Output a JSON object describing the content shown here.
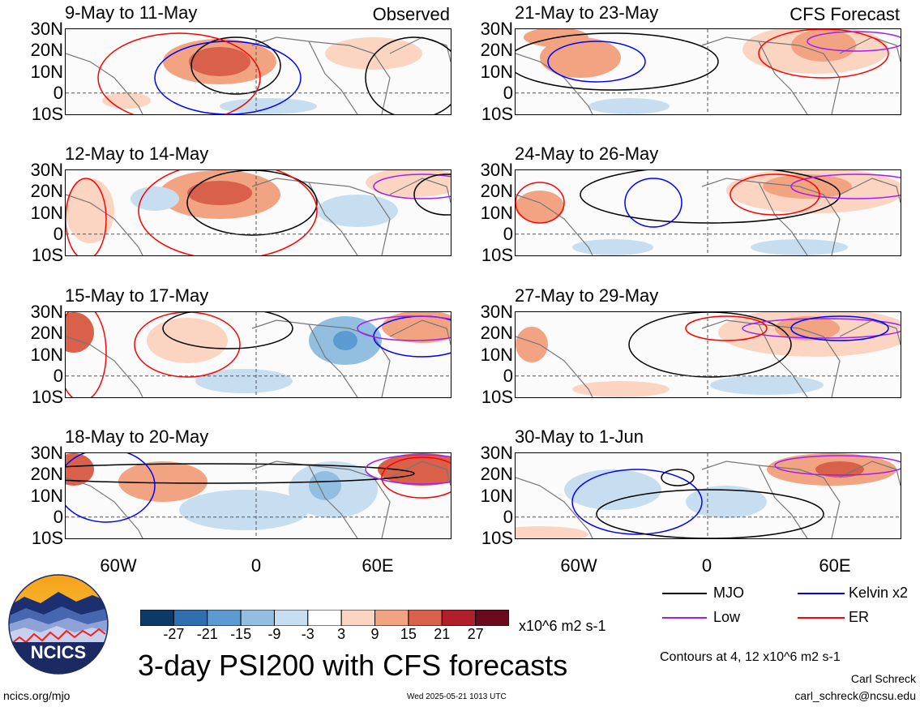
{
  "chart_data": {
    "type": "heatmap",
    "title": "3-day PSI200 with CFS forecasts",
    "units": "x10^6 m2 s-1",
    "lat_ticks": [
      "30N",
      "20N",
      "10N",
      "0",
      "10S"
    ],
    "lon_ticks": [
      "60W",
      "0",
      "60E"
    ],
    "lat_range": [
      -10,
      30
    ],
    "observed_label": "Observed",
    "forecast_label": "CFS Forecast",
    "panels": [
      {
        "title": "9-May to 11-May",
        "kind": "observed"
      },
      {
        "title": "12-May to 14-May",
        "kind": "observed"
      },
      {
        "title": "15-May to 17-May",
        "kind": "observed"
      },
      {
        "title": "18-May to 20-May",
        "kind": "observed"
      },
      {
        "title": "21-May to 23-May",
        "kind": "forecast"
      },
      {
        "title": "24-May to 26-May",
        "kind": "forecast"
      },
      {
        "title": "27-May to 29-May",
        "kind": "forecast"
      },
      {
        "title": "30-May to 1-Jun",
        "kind": "forecast"
      }
    ],
    "colorbar": {
      "labels": [
        "-27",
        "-21",
        "-15",
        "-9",
        "-3",
        "3",
        "9",
        "15",
        "21",
        "27"
      ],
      "colors": [
        "#0b3a66",
        "#2f6fb0",
        "#5b9bd1",
        "#92bfe0",
        "#c7def0",
        "#ffffff",
        "#fcd5c2",
        "#f2a482",
        "#d9604a",
        "#b01f2b",
        "#6a0a1c"
      ]
    },
    "legend": [
      {
        "label": "MJO",
        "color": "#000000"
      },
      {
        "label": "Kelvin x2",
        "color": "#0000ff"
      },
      {
        "label": "Low",
        "color": "#a020f0"
      },
      {
        "label": "ER",
        "color": "#ff0000"
      }
    ],
    "contour_note": "Contours at 4, 12 x10^6 m2 s-1"
  },
  "footer": {
    "left": "ncics.org/mjo",
    "timestamp": "Wed 2025-05-21 1013 UTC",
    "author": "Carl Schreck",
    "email": "carl_schreck@ncsu.edu"
  },
  "logo": {
    "text": "NCICS"
  }
}
